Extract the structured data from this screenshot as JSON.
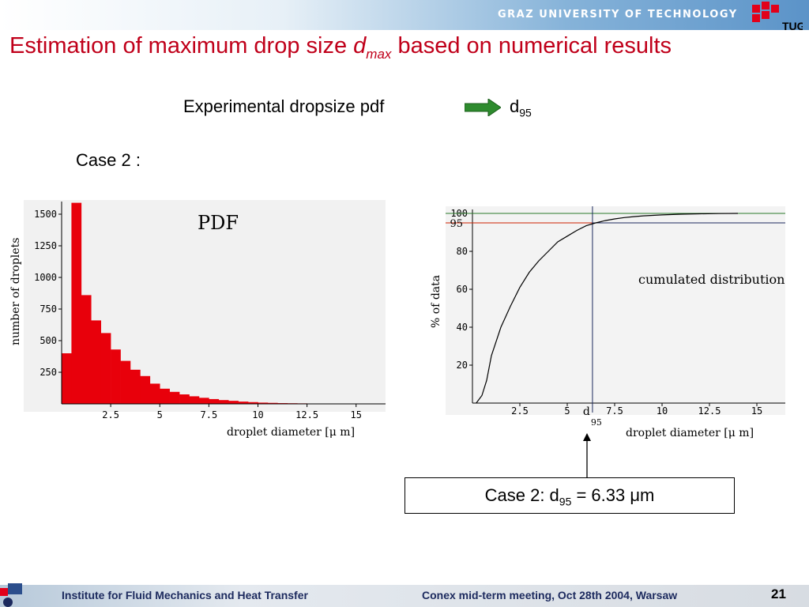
{
  "header": {
    "university": "GRAZ UNIVERSITY OF TECHNOLOGY",
    "logo_text": "TUG",
    "bar_color": "#5b93c8"
  },
  "title": {
    "prefix": "Estimation of maximum drop size ",
    "var": "d",
    "var_sub": "max",
    "suffix": " based on numerical results",
    "color": "#c0001a"
  },
  "flow": {
    "left": "Experimental dropsize pdf",
    "right_main": "d",
    "right_sub": "95",
    "arrow_color": "#2e8b2e"
  },
  "case_label": "Case 2 :",
  "result": {
    "prefix": "Case 2:  d",
    "sub": "95",
    "suffix": " = 6.33 μm"
  },
  "footer": {
    "left": "Institute for Fluid Mechanics and Heat Transfer",
    "right": "Conex mid-term meeting, Oct 28th 2004, Warsaw",
    "page": "21"
  },
  "chart_data": [
    {
      "type": "bar",
      "title": "PDF",
      "xlabel": "droplet diameter [μ m]",
      "ylabel": "number of droplets",
      "color": "#e8000b",
      "xlim": [
        0,
        16.5
      ],
      "ylim": [
        0,
        1600
      ],
      "xticks": [
        "2.5",
        "5",
        "7.5",
        "10",
        "12.5",
        "15"
      ],
      "xtick_values": [
        2.5,
        5,
        7.5,
        10,
        12.5,
        15
      ],
      "yticks": [
        "250",
        "500",
        "750",
        "1000",
        "1250",
        "1500"
      ],
      "ytick_values": [
        250,
        500,
        750,
        1000,
        1250,
        1500
      ],
      "bin_edges": [
        0,
        0.5,
        1,
        1.5,
        2,
        2.5,
        3,
        3.5,
        4,
        4.5,
        5,
        5.5,
        6,
        6.5,
        7,
        7.5,
        8,
        8.5,
        9,
        9.5,
        10,
        10.5,
        11,
        11.5,
        12,
        12.5,
        13,
        13.5,
        14,
        14.5,
        15,
        15.5,
        16,
        16.5
      ],
      "values": [
        400,
        1590,
        860,
        660,
        560,
        430,
        340,
        270,
        220,
        160,
        120,
        95,
        75,
        60,
        48,
        38,
        30,
        24,
        18,
        14,
        10,
        8,
        6,
        5,
        4,
        3,
        3,
        2,
        2,
        1,
        1,
        1,
        1
      ]
    },
    {
      "type": "line",
      "title": "cumulated distribution",
      "xlabel": "droplet diameter [μ m]",
      "ylabel": "% of data",
      "xlim": [
        0,
        16.5
      ],
      "ylim": [
        0,
        100
      ],
      "xticks": [
        "2.5",
        "5",
        "7.5",
        "10",
        "12.5",
        "15"
      ],
      "xtick_values": [
        2.5,
        5,
        7.5,
        10,
        12.5,
        15
      ],
      "yticks": [
        "20",
        "40",
        "60",
        "80",
        "100"
      ],
      "ytick_values": [
        20,
        40,
        60,
        80,
        100
      ],
      "x": [
        0.2,
        0.5,
        0.75,
        1,
        1.5,
        2,
        2.5,
        3,
        3.5,
        4,
        4.5,
        5,
        5.5,
        6,
        6.5,
        7,
        7.5,
        8,
        8.5,
        9,
        10,
        11,
        12,
        13,
        14
      ],
      "y": [
        0,
        4,
        12,
        25,
        40,
        51,
        61,
        69,
        75,
        80,
        85,
        88,
        91,
        93.5,
        95,
        96.2,
        97.1,
        97.8,
        98.3,
        98.7,
        99.2,
        99.6,
        99.8,
        99.9,
        100
      ],
      "reference_lines": {
        "y95_label": "95",
        "y95": 95,
        "y100": 100,
        "x_d95": 6.33,
        "x_d95_label": "d",
        "x_d95_label_sub": "95"
      }
    }
  ]
}
